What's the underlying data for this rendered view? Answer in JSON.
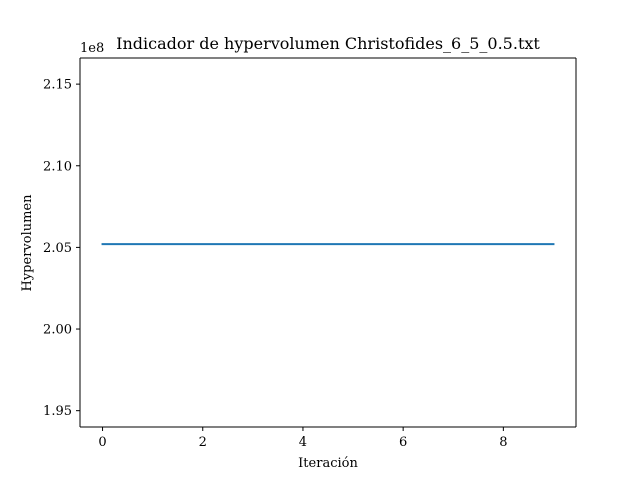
{
  "chart_data": {
    "type": "line",
    "title": "Indicador de hypervolumen Christofides_6_5_0.5.txt",
    "xlabel": "Iteración",
    "ylabel": "Hypervolumen",
    "offset_label": "1e8",
    "xlim": [
      -0.45,
      9.45
    ],
    "ylim": [
      1.94,
      2.166
    ],
    "x_ticks": [
      0,
      2,
      4,
      6,
      8
    ],
    "x_tick_labels": [
      "0",
      "2",
      "4",
      "6",
      "8"
    ],
    "y_ticks": [
      1.95,
      2.0,
      2.05,
      2.1,
      2.15
    ],
    "y_tick_labels": [
      "1.95",
      "2.00",
      "2.05",
      "2.10",
      "2.15"
    ],
    "grid": false,
    "series": [
      {
        "color": "#1f77b4",
        "x": [
          0,
          1,
          2,
          3,
          4,
          5,
          6,
          7,
          8,
          9
        ],
        "y": [
          2.052,
          2.052,
          2.052,
          2.052,
          2.052,
          2.052,
          2.052,
          2.052,
          2.052,
          2.052
        ]
      }
    ]
  }
}
